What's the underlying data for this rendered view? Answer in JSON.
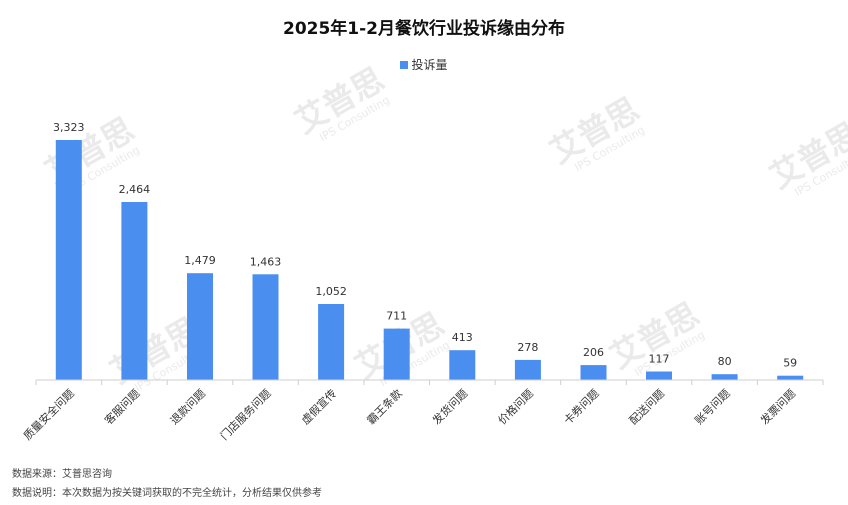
{
  "chart_data": {
    "type": "bar",
    "title": "2025年1-2月餐饮行业投诉缘由分布",
    "legend": {
      "position": "top",
      "entries": [
        "投诉量"
      ]
    },
    "categories": [
      "质量安全问题",
      "客服问题",
      "退款问题",
      "门店服务问题",
      "虚假宣传",
      "霸王条款",
      "发货问题",
      "价格问题",
      "卡券问题",
      "配送问题",
      "账号问题",
      "发票问题"
    ],
    "series": [
      {
        "name": "投诉量",
        "values": [
          3323,
          2464,
          1479,
          1463,
          1052,
          711,
          413,
          278,
          206,
          117,
          80,
          59
        ],
        "color": "#4a8ef0"
      }
    ],
    "data_labels": [
      "3,323",
      "2,464",
      "1,479",
      "1,463",
      "1,052",
      "711",
      "413",
      "278",
      "206",
      "117",
      "80",
      "59"
    ],
    "ylim": [
      0,
      3323
    ],
    "grid": false
  },
  "footer": {
    "source": "数据来源：艾普思咨询",
    "note": "数据说明：本次数据为按关键词获取的不完全统计，分析结果仅供参考"
  },
  "watermark": {
    "text": "艾普思",
    "subtext": "IPS Consulting",
    "color": "#d9d9d9"
  }
}
